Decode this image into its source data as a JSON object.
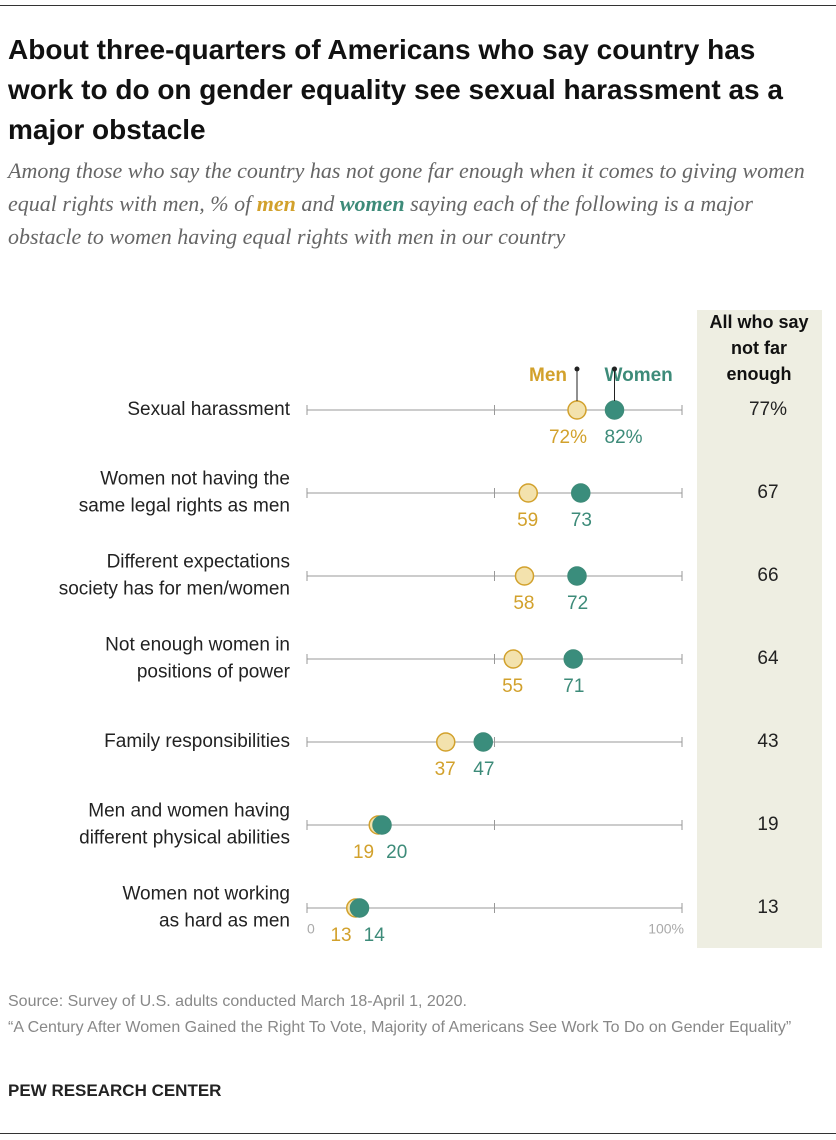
{
  "chart_data": {
    "type": "dot",
    "title": "About three-quarters of Americans who say country has work to do on gender equality see sexual harassment as a major obstacle",
    "subtitle_parts": [
      "Among those who say the country has not gone far enough when it comes to giving women equal rights with men, % of ",
      "men",
      " and ",
      "women",
      " saying each of the following is a major obstacle to women having equal rights with men in our country"
    ],
    "categories": [
      [
        "Sexual harassment"
      ],
      [
        "Women not having the",
        "same legal rights as men"
      ],
      [
        "Different expectations",
        "society has for men/women"
      ],
      [
        "Not enough women in",
        "positions of power"
      ],
      [
        "Family responsibilities"
      ],
      [
        "Men and women having",
        "different physical abilities"
      ],
      [
        "Women not working",
        "as hard as men"
      ]
    ],
    "series": [
      {
        "name": "Men",
        "color": "#d2a12c",
        "fill": "#f3e2ad",
        "values": [
          72,
          59,
          58,
          55,
          37,
          19,
          13
        ],
        "value_labels": [
          "72%",
          "59",
          "58",
          "55",
          "37",
          "19",
          "13"
        ]
      },
      {
        "name": "Women",
        "color": "#3d8b79",
        "fill": "#3a8d7c",
        "values": [
          82,
          73,
          72,
          71,
          47,
          20,
          14
        ],
        "value_labels": [
          "82%",
          "73",
          "72",
          "71",
          "47",
          "20",
          "14"
        ]
      }
    ],
    "xlim": [
      0,
      100
    ],
    "xticks": [
      0,
      {
        "value": 50,
        "label": null
      },
      {
        "value": 100,
        "label": "100%"
      }
    ],
    "total": {
      "header": [
        "All who say",
        "not far",
        "enough"
      ],
      "values": [
        77,
        67,
        66,
        64,
        43,
        19,
        13
      ],
      "value_labels": [
        "77%",
        "67",
        "66",
        "64",
        "43",
        "19",
        "13"
      ]
    },
    "source": "Source: Survey of U.S. adults conducted March 18-April 1, 2020.",
    "note": "“A Century After Women Gained the Right To Vote, Majority of Americans See Work To Do on Gender Equality”",
    "footer": "PEW RESEARCH CENTER"
  }
}
